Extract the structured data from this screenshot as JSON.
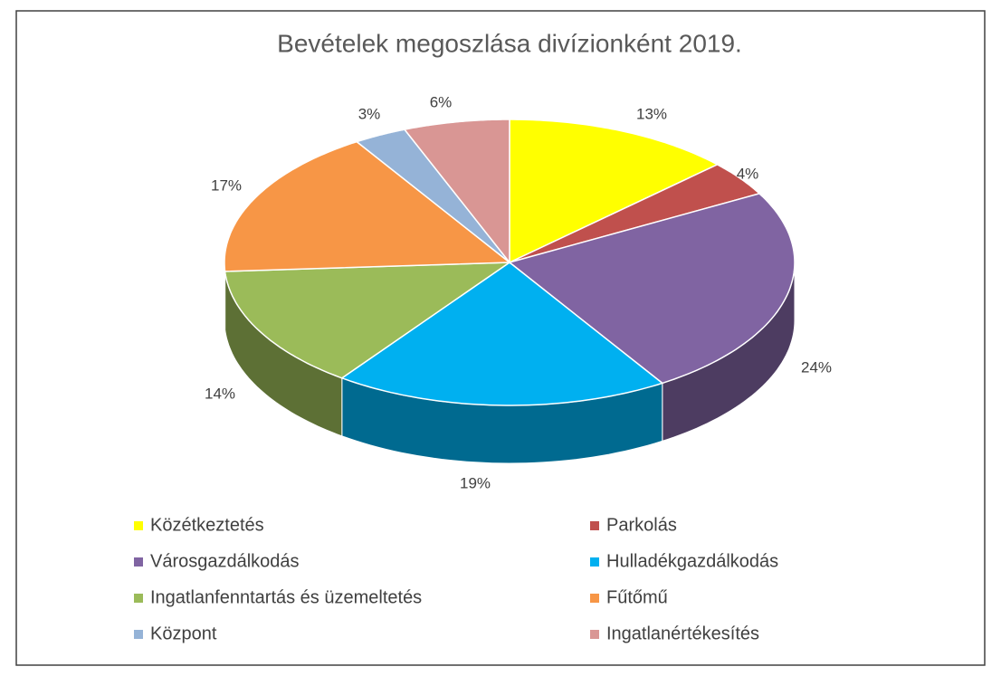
{
  "chart_data": {
    "type": "pie",
    "title": "Bevételek megoszlása divízionként 2019.",
    "categories": [
      "Közétkeztetés",
      "Parkolás",
      "Városgazdálkodás",
      "Hulladékgazdálkodás",
      "Ingatlanfenntartás és üzemeltetés",
      "Fűtőmű",
      "Központ",
      "Ingatlanértékesítés"
    ],
    "values": [
      13,
      4,
      24,
      19,
      14,
      17,
      3,
      6
    ],
    "value_labels": [
      "13%",
      "4%",
      "24%",
      "19%",
      "14%",
      "17%",
      "3%",
      "6%"
    ],
    "colors": [
      "#ffff00",
      "#c0504d",
      "#8064a2",
      "#00b0f0",
      "#9bbb59",
      "#f79646",
      "#95b3d7",
      "#d99694"
    ],
    "legend": "bottom"
  }
}
